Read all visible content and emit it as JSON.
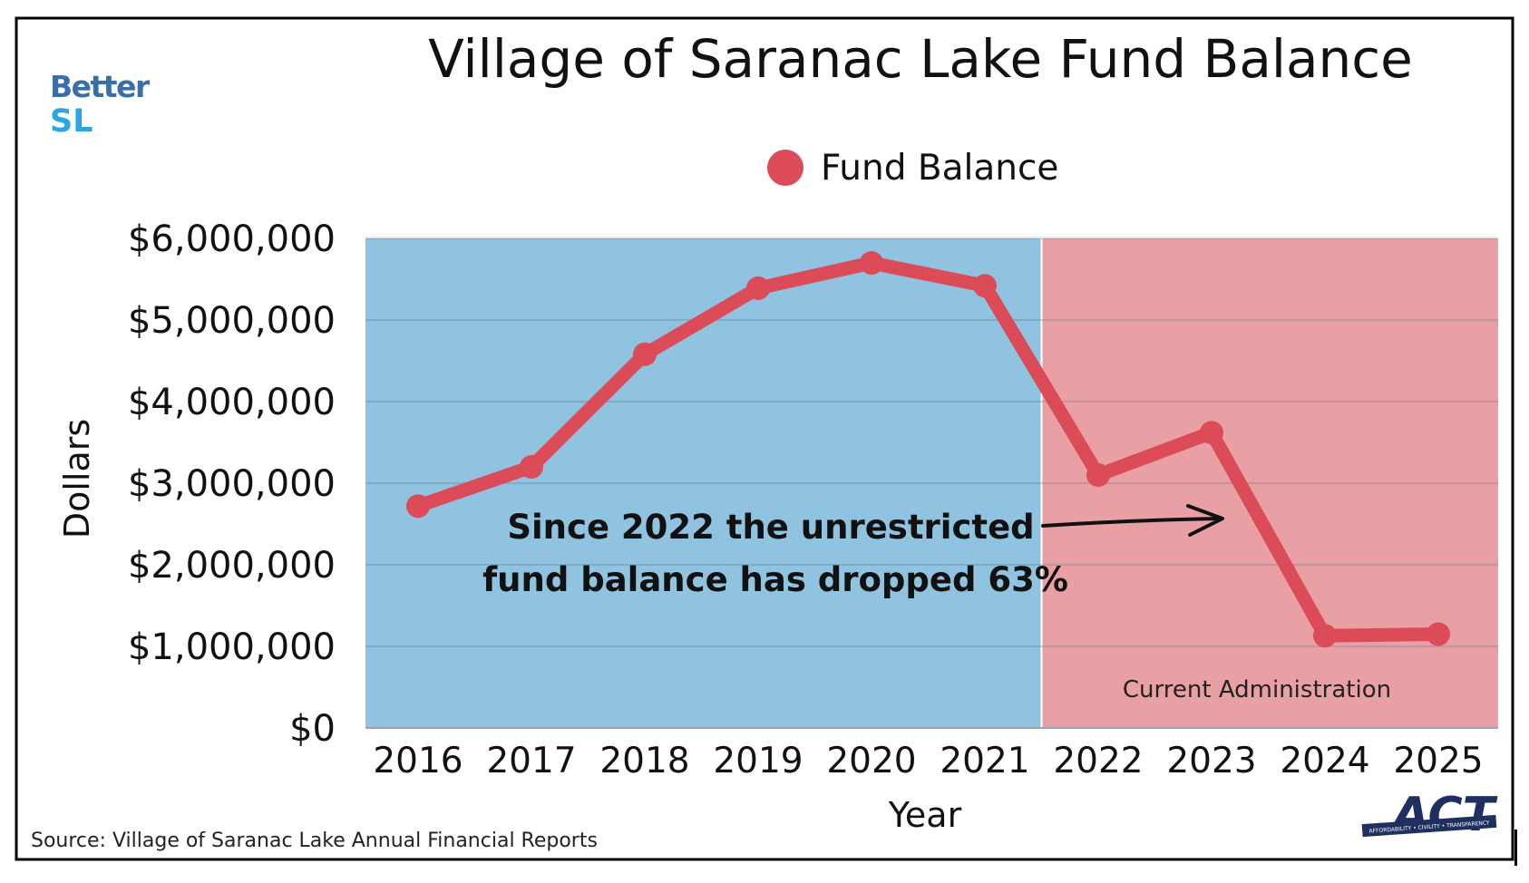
{
  "header": {
    "title": "Village of Saranac Lake Fund Balance"
  },
  "logos": {
    "better_sl_line1": "Better",
    "better_sl_line2": "SL",
    "act": "ACT",
    "act_tagline": "AFFORDABILITY • CIVILITY • TRANSPARENCY"
  },
  "footer": {
    "source": "Source: Village of Saranac Lake Annual Financial Reports"
  },
  "colors": {
    "line": "#dc4c58",
    "region_before": "#8fc3df",
    "region_current": "#e9a0a5",
    "better_blue": "#3a6ea8",
    "better_cyan": "#29a7e0",
    "act_navy": "#1f2f5f"
  },
  "chart_data": {
    "type": "line",
    "title": "Village of Saranac Lake Fund Balance",
    "xlabel": "Year",
    "ylabel": "Dollars",
    "ylim": [
      0,
      6000000
    ],
    "yticks": [
      "$0",
      "$1,000,000",
      "$2,000,000",
      "$3,000,000",
      "$4,000,000",
      "$5,000,000",
      "$6,000,000"
    ],
    "grid": true,
    "legend_position": "top-center",
    "categories": [
      "2016",
      "2017",
      "2018",
      "2019",
      "2020",
      "2021",
      "2022",
      "2023",
      "2024",
      "2025"
    ],
    "series": [
      {
        "name": "Fund Balance",
        "values": [
          2720000,
          3200000,
          4580000,
          5390000,
          5700000,
          5420000,
          3100000,
          3620000,
          1130000,
          1150000
        ]
      }
    ],
    "regions": [
      {
        "from": "2016",
        "to": "2021",
        "label": ""
      },
      {
        "from": "2022",
        "to": "2025",
        "label": "Current Administration"
      }
    ],
    "annotation": {
      "line1": "Since 2022 the unrestricted",
      "line2": "fund balance has dropped 63%",
      "points_to": "2023"
    }
  }
}
